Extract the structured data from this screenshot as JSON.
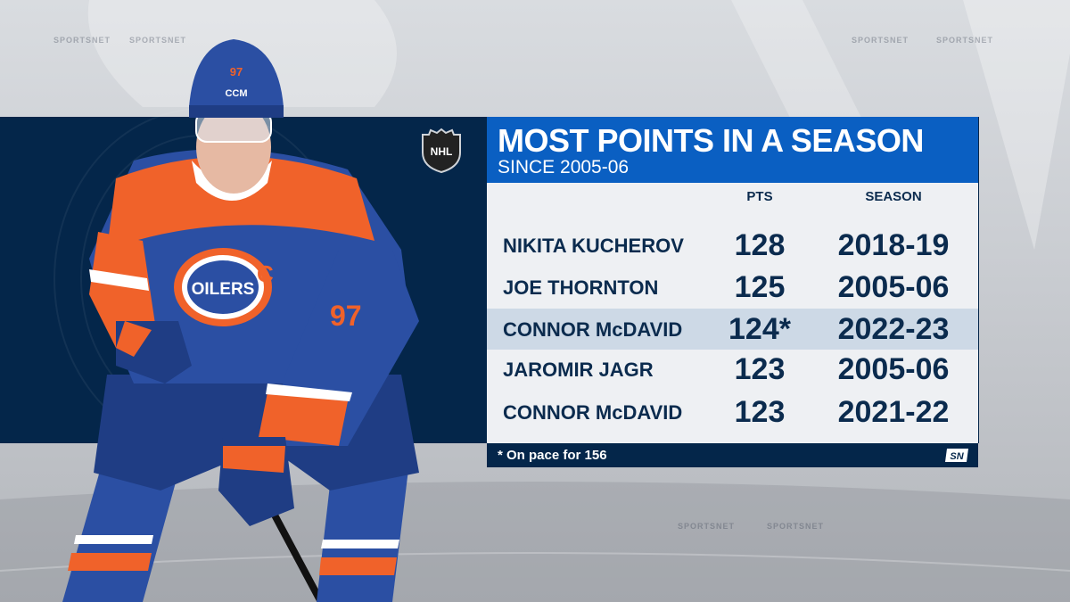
{
  "header": {
    "title": "MOST POINTS IN A SEASON",
    "subtitle": "SINCE 2005-06"
  },
  "columns": {
    "pts": "PTS",
    "season": "SEASON"
  },
  "rows": [
    {
      "name": "NIKITA KUCHEROV",
      "pts": "128",
      "season": "2018-19",
      "highlight": false
    },
    {
      "name": "JOE THORNTON",
      "pts": "125",
      "season": "2005-06",
      "highlight": false
    },
    {
      "name": "CONNOR McDAVID",
      "pts": "124*",
      "season": "2022-23",
      "highlight": true
    },
    {
      "name": "JAROMIR JAGR",
      "pts": "123",
      "season": "2005-06",
      "highlight": false
    },
    {
      "name": "CONNOR McDAVID",
      "pts": "123",
      "season": "2021-22",
      "highlight": false
    }
  ],
  "footer": {
    "footnote": "* On pace for 156",
    "logo_text": "SN"
  },
  "player": {
    "jersey_number": "97",
    "captain_letter": "C",
    "team_crest_text": "OILERS",
    "helmet_brand": "CCM"
  },
  "watermark": "SPORTSNET",
  "colors": {
    "header_blue": "#0a5fc2",
    "navy": "#04264a",
    "text_navy": "#0b2b4e",
    "oilers_orange": "#f0622a",
    "oilers_blue": "#2b4fa3",
    "highlight_row": "#cdd9e6"
  },
  "icons": {
    "league_logo": "nhl-shield-icon",
    "network_logo": "sportsnet-logo-icon"
  }
}
